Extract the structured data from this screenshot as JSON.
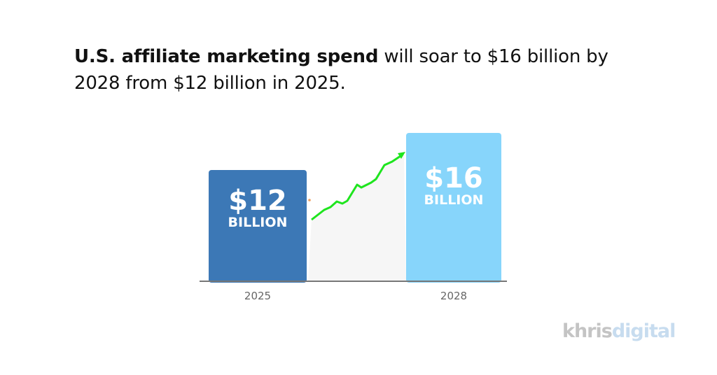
{
  "title": {
    "bold": "U.S. affiliate marketing spend",
    "rest": " will soar to $16 billion by 2028 from $12 billion in 2025."
  },
  "chart_data": {
    "type": "bar",
    "categories": [
      "2025",
      "2028"
    ],
    "values": [
      12,
      16
    ],
    "value_labels": [
      {
        "amount": "$12",
        "unit": "BILLION"
      },
      {
        "amount": "$16",
        "unit": "BILLION"
      }
    ],
    "colors": [
      "#3c78b6",
      "#87d5fb"
    ],
    "trend_arrow_color": "#1ee51e",
    "xlabel": "",
    "ylabel": "",
    "grid": false
  },
  "logo": {
    "part1": "khris",
    "part2": "digital"
  }
}
